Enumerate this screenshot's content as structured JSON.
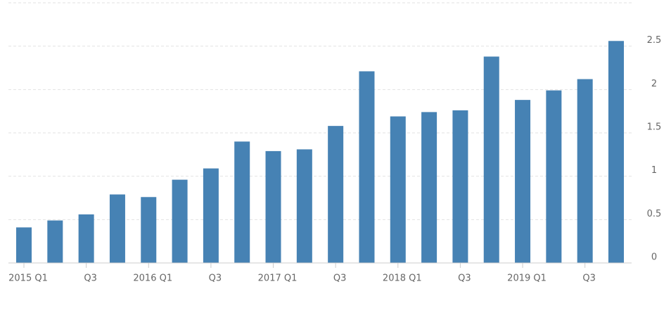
{
  "chart_data": {
    "type": "bar",
    "categories": [
      "2015 Q1",
      null,
      "Q3",
      null,
      "2016 Q1",
      null,
      "Q3",
      null,
      "2017 Q1",
      null,
      "Q3",
      null,
      "2018 Q1",
      null,
      "Q3",
      null,
      "2019 Q1",
      null,
      "Q3",
      null
    ],
    "values": [
      0.41,
      0.49,
      0.56,
      0.79,
      0.76,
      0.96,
      1.09,
      1.4,
      1.29,
      1.31,
      1.58,
      2.21,
      1.69,
      1.74,
      1.76,
      2.38,
      1.88,
      1.99,
      2.12,
      2.56
    ],
    "color": "#4682b4",
    "ylim": [
      0,
      3
    ],
    "yticks": [
      0,
      0.5,
      1,
      1.5,
      2,
      2.5
    ],
    "grid": true
  }
}
